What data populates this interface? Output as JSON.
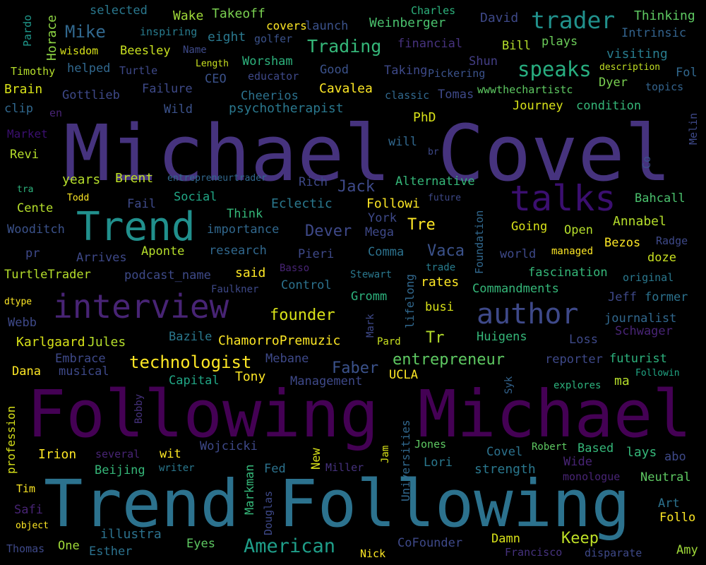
{
  "background": "#000000",
  "words": [
    {
      "text": "Michael Covel",
      "color": "#46337e"
    },
    {
      "text": "Following Michael",
      "color": "#440154"
    },
    {
      "text": "Trend Following",
      "color": "#2c728e"
    },
    {
      "text": "Trend",
      "color": "#21908d"
    },
    {
      "text": "talks",
      "color": "#3b0f70"
    },
    {
      "text": "interview",
      "color": "#482475"
    },
    {
      "text": "author",
      "color": "#3e4989"
    },
    {
      "text": "trader",
      "color": "#21918c"
    },
    {
      "text": "speaks",
      "color": "#28ae80"
    },
    {
      "text": "American",
      "color": "#1f9e89"
    },
    {
      "text": "Trading",
      "color": "#35b779"
    },
    {
      "text": "Mike",
      "color": "#31688e"
    },
    {
      "text": "technologist",
      "color": "#fde725"
    },
    {
      "text": "entrepreneur",
      "color": "#5ec962"
    },
    {
      "text": "founder",
      "color": "#d8e219"
    },
    {
      "text": "Dever",
      "color": "#3e4989"
    },
    {
      "text": "Faber",
      "color": "#3b528b"
    },
    {
      "text": "Jack",
      "color": "#3e4a89"
    },
    {
      "text": "Tre",
      "color": "#fde725"
    },
    {
      "text": "Tr",
      "color": "#b5de2b"
    },
    {
      "text": "Vaca",
      "color": "#3b528b"
    },
    {
      "text": "Keep",
      "color": "#bddf26"
    },
    {
      "text": "Pardo",
      "color": "#1f988b"
    },
    {
      "text": "Horace",
      "color": "#8fd744"
    },
    {
      "text": "selected",
      "color": "#2a788e"
    },
    {
      "text": "Wake",
      "color": "#a0da39"
    },
    {
      "text": "Takeoff",
      "color": "#7ad151"
    },
    {
      "text": "covers",
      "color": "#fde725"
    },
    {
      "text": "launch",
      "color": "#3b528b"
    },
    {
      "text": "Charles",
      "color": "#2db27d"
    },
    {
      "text": "Weinberger",
      "color": "#4ac16d"
    },
    {
      "text": "David",
      "color": "#3e4989"
    },
    {
      "text": "Thinking",
      "color": "#5ec962"
    },
    {
      "text": "Intrinsic",
      "color": "#33638d"
    },
    {
      "text": "inspiring",
      "color": "#287c8e"
    },
    {
      "text": "eight",
      "color": "#2a788e"
    },
    {
      "text": "golfer",
      "color": "#3b528b"
    },
    {
      "text": "financial",
      "color": "#46327e"
    },
    {
      "text": "Bill",
      "color": "#b5de2b"
    },
    {
      "text": "plays",
      "color": "#6ccd5a"
    },
    {
      "text": "wisdom",
      "color": "#d8e219"
    },
    {
      "text": "Beesley",
      "color": "#c8e020"
    },
    {
      "text": "Name",
      "color": "#3e4a89"
    },
    {
      "text": "Length",
      "color": "#c8e020"
    },
    {
      "text": "Worsham",
      "color": "#2db27d"
    },
    {
      "text": "Shun",
      "color": "#433e85"
    },
    {
      "text": "visiting",
      "color": "#287c8e"
    },
    {
      "text": "Timothy",
      "color": "#b5de2b"
    },
    {
      "text": "helped",
      "color": "#31688e"
    },
    {
      "text": "Turtle",
      "color": "#3e4989"
    },
    {
      "text": "educator",
      "color": "#3e4989"
    },
    {
      "text": "Good",
      "color": "#3b528b"
    },
    {
      "text": "Taking",
      "color": "#3e4989"
    },
    {
      "text": "Pickering",
      "color": "#3b528b"
    },
    {
      "text": "description",
      "color": "#c2df23"
    },
    {
      "text": "Fol",
      "color": "#31688e"
    },
    {
      "text": "Brain",
      "color": "#d8e219"
    },
    {
      "text": "Gottlieb",
      "color": "#3e4989"
    },
    {
      "text": "Failure",
      "color": "#3e4a89"
    },
    {
      "text": "CEO",
      "color": "#3b528b"
    },
    {
      "text": "Cheerios",
      "color": "#2c728e"
    },
    {
      "text": "Cavalea",
      "color": "#fde725"
    },
    {
      "text": "classic",
      "color": "#31688e"
    },
    {
      "text": "Tomas",
      "color": "#3e4989"
    },
    {
      "text": "Dyer",
      "color": "#7ad151"
    },
    {
      "text": "topics",
      "color": "#33638d"
    },
    {
      "text": "wwwthechartistc",
      "color": "#5ec962"
    },
    {
      "text": "clip",
      "color": "#31688e"
    },
    {
      "text": "en",
      "color": "#482475"
    },
    {
      "text": "Wild",
      "color": "#3b528b"
    },
    {
      "text": "psychotherapist",
      "color": "#2a788e"
    },
    {
      "text": "Journey",
      "color": "#d8e219"
    },
    {
      "text": "condition",
      "color": "#35b779"
    },
    {
      "text": "Melin",
      "color": "#3e4989"
    },
    {
      "text": "Market",
      "color": "#3b0f70"
    },
    {
      "text": "PhD",
      "color": "#d8e219"
    },
    {
      "text": "Revi",
      "color": "#b5de2b"
    },
    {
      "text": "will",
      "color": "#31688e"
    },
    {
      "text": "br",
      "color": "#3e4989"
    },
    {
      "text": "years",
      "color": "#b5de2b"
    },
    {
      "text": "Brent",
      "color": "#bddf26"
    },
    {
      "text": "entrepreneurtrader",
      "color": "#31688e"
    },
    {
      "text": "Rich",
      "color": "#3e4989"
    },
    {
      "text": "Alternative",
      "color": "#35b779"
    },
    {
      "text": "Co",
      "color": "#3b528b"
    },
    {
      "text": "tra",
      "color": "#2db27d"
    },
    {
      "text": "Todd",
      "color": "#fde725"
    },
    {
      "text": "Social",
      "color": "#21a685"
    },
    {
      "text": "future",
      "color": "#3e4989"
    },
    {
      "text": "Bahcall",
      "color": "#4ac16d"
    },
    {
      "text": "Cente",
      "color": "#b5de2b"
    },
    {
      "text": "Fail",
      "color": "#3e4a89"
    },
    {
      "text": "Eclectic",
      "color": "#2a788e"
    },
    {
      "text": "Followi",
      "color": "#fde725"
    },
    {
      "text": "Think",
      "color": "#35b779"
    },
    {
      "text": "York",
      "color": "#3e4989"
    },
    {
      "text": "Foundation",
      "color": "#31688e"
    },
    {
      "text": "Annabel",
      "color": "#b5de2b"
    },
    {
      "text": "Wooditch",
      "color": "#3b528b"
    },
    {
      "text": "importance",
      "color": "#31688e"
    },
    {
      "text": "Mega",
      "color": "#3e4989"
    },
    {
      "text": "Going",
      "color": "#d8e219"
    },
    {
      "text": "Open",
      "color": "#b5de2b"
    },
    {
      "text": "Radge",
      "color": "#3e4989"
    },
    {
      "text": "pr",
      "color": "#3e4989"
    },
    {
      "text": "Arrives",
      "color": "#3e4989"
    },
    {
      "text": "Aponte",
      "color": "#b5de2b"
    },
    {
      "text": "research",
      "color": "#31688e"
    },
    {
      "text": "Pieri",
      "color": "#3e4989"
    },
    {
      "text": "Comma",
      "color": "#2c728e"
    },
    {
      "text": "world",
      "color": "#3e4989"
    },
    {
      "text": "managed",
      "color": "#fde725"
    },
    {
      "text": "Bezos",
      "color": "#fde725"
    },
    {
      "text": "doze",
      "color": "#c8e020"
    },
    {
      "text": "TurtleTrader",
      "color": "#b5de2b"
    },
    {
      "text": "podcast_name",
      "color": "#3e4a89"
    },
    {
      "text": "said",
      "color": "#fde725"
    },
    {
      "text": "Basso",
      "color": "#482475"
    },
    {
      "text": "Stewart",
      "color": "#2a788e"
    },
    {
      "text": "trade",
      "color": "#287c8e"
    },
    {
      "text": "fascination",
      "color": "#35b779"
    },
    {
      "text": "original",
      "color": "#2a788e"
    },
    {
      "text": "Faulkner",
      "color": "#3e4989"
    },
    {
      "text": "Control",
      "color": "#2c728e"
    },
    {
      "text": "rates",
      "color": "#fde725"
    },
    {
      "text": "Commandments",
      "color": "#35b779"
    },
    {
      "text": "dtype",
      "color": "#fde725"
    },
    {
      "text": "Gromm",
      "color": "#2db27d"
    },
    {
      "text": "lifelong",
      "color": "#31688e"
    },
    {
      "text": "Jeff",
      "color": "#3e4989"
    },
    {
      "text": "former",
      "color": "#2c728e"
    },
    {
      "text": "busi",
      "color": "#d8e219"
    },
    {
      "text": "journalist",
      "color": "#31688e"
    },
    {
      "text": "Webb",
      "color": "#3e4989"
    },
    {
      "text": "Mark",
      "color": "#3e4989"
    },
    {
      "text": "Schwager",
      "color": "#482475"
    },
    {
      "text": "Karlgaard",
      "color": "#d8e219"
    },
    {
      "text": "Jules",
      "color": "#b5de2b"
    },
    {
      "text": "Bazile",
      "color": "#2a788e"
    },
    {
      "text": "ChamorroPremuzic",
      "color": "#fde725"
    },
    {
      "text": "Pard",
      "color": "#c8e020"
    },
    {
      "text": "Huigens",
      "color": "#35b779"
    },
    {
      "text": "Loss",
      "color": "#3e4989"
    },
    {
      "text": "Embrace",
      "color": "#3e4989"
    },
    {
      "text": "Mebane",
      "color": "#3e4989"
    },
    {
      "text": "reporter",
      "color": "#3e4989"
    },
    {
      "text": "futurist",
      "color": "#2db27d"
    },
    {
      "text": "Dana",
      "color": "#fde725"
    },
    {
      "text": "musical",
      "color": "#3e4989"
    },
    {
      "text": "Capital",
      "color": "#21a685"
    },
    {
      "text": "Tony",
      "color": "#fde725"
    },
    {
      "text": "UCLA",
      "color": "#fde725"
    },
    {
      "text": "Followin",
      "color": "#21a685"
    },
    {
      "text": "Management",
      "color": "#3e4989"
    },
    {
      "text": "Syk",
      "color": "#33638d"
    },
    {
      "text": "explores",
      "color": "#2db27d"
    },
    {
      "text": "ma",
      "color": "#b5de2b"
    },
    {
      "text": "profession",
      "color": "#d8e219"
    },
    {
      "text": "Bobby",
      "color": "#46327e"
    },
    {
      "text": "Universities",
      "color": "#31688e"
    },
    {
      "text": "Irion",
      "color": "#fde725"
    },
    {
      "text": "several",
      "color": "#482475"
    },
    {
      "text": "wit",
      "color": "#fde725"
    },
    {
      "text": "Wojcicki",
      "color": "#3e4989"
    },
    {
      "text": "New",
      "color": "#d8e219"
    },
    {
      "text": "Jam",
      "color": "#d8e219"
    },
    {
      "text": "Jones",
      "color": "#5ec962"
    },
    {
      "text": "Covel",
      "color": "#2c728e"
    },
    {
      "text": "Robert",
      "color": "#5ec962"
    },
    {
      "text": "Based",
      "color": "#35b779"
    },
    {
      "text": "lays",
      "color": "#35b779"
    },
    {
      "text": "abo",
      "color": "#3e4989"
    },
    {
      "text": "Beijing",
      "color": "#35b779"
    },
    {
      "text": "writer",
      "color": "#2a788e"
    },
    {
      "text": "Markman",
      "color": "#35b779"
    },
    {
      "text": "Fed",
      "color": "#2c728e"
    },
    {
      "text": "Miller",
      "color": "#46327e"
    },
    {
      "text": "Lori",
      "color": "#2a788e"
    },
    {
      "text": "strength",
      "color": "#2a788e"
    },
    {
      "text": "Wide",
      "color": "#482475"
    },
    {
      "text": "monologue",
      "color": "#482475"
    },
    {
      "text": "Neutral",
      "color": "#5ec962"
    },
    {
      "text": "Tim",
      "color": "#fde725"
    },
    {
      "text": "Safi",
      "color": "#482475"
    },
    {
      "text": "Douglas",
      "color": "#3e4989"
    },
    {
      "text": "Art",
      "color": "#2c728e"
    },
    {
      "text": "Follo",
      "color": "#fde725"
    },
    {
      "text": "object",
      "color": "#fde725"
    },
    {
      "text": "illustra",
      "color": "#2c728e"
    },
    {
      "text": "Eyes",
      "color": "#5ec962"
    },
    {
      "text": "CoFounder",
      "color": "#3e4989"
    },
    {
      "text": "Damn",
      "color": "#d8e219"
    },
    {
      "text": "Thomas",
      "color": "#3e4989"
    },
    {
      "text": "One",
      "color": "#a0da39"
    },
    {
      "text": "Esther",
      "color": "#2c728e"
    },
    {
      "text": "Nick",
      "color": "#fde725"
    },
    {
      "text": "Francisco",
      "color": "#46327e"
    },
    {
      "text": "disparate",
      "color": "#3e4989"
    },
    {
      "text": "Amy",
      "color": "#a0da39"
    }
  ]
}
